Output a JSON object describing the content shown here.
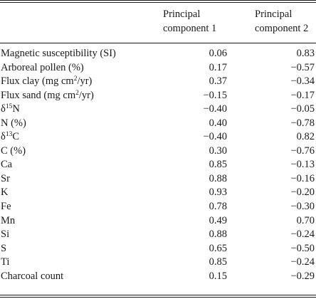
{
  "table": {
    "headers": {
      "pc1_line1": "Principal",
      "pc1_line2": "component 1",
      "pc2_line1": "Principal",
      "pc2_line2": "component 2"
    },
    "rows": [
      {
        "pre": "Magnetic susceptibility (SI)",
        "sup": "",
        "post": "",
        "pc1": "0.06",
        "pc2": "0.83"
      },
      {
        "pre": "Arboreal pollen (%)",
        "sup": "",
        "post": "",
        "pc1": "0.17",
        "pc2": "−0.57"
      },
      {
        "pre": "Flux clay (mg cm",
        "sup": "2",
        "post": "/yr)",
        "pc1": "0.37",
        "pc2": "−0.34"
      },
      {
        "pre": "Flux sand (mg cm",
        "sup": "2",
        "post": "/yr)",
        "pc1": "−0.15",
        "pc2": "−0.17"
      },
      {
        "pre": "δ",
        "sup": "15",
        "post": "N",
        "pc1": "−0.40",
        "pc2": "−0.05"
      },
      {
        "pre": "N (%)",
        "sup": "",
        "post": "",
        "pc1": "0.40",
        "pc2": "−0.78"
      },
      {
        "pre": "δ",
        "sup": "13",
        "post": "C",
        "pc1": "−0.40",
        "pc2": "0.82"
      },
      {
        "pre": "C (%)",
        "sup": "",
        "post": "",
        "pc1": "0.30",
        "pc2": "−0.76"
      },
      {
        "pre": "Ca",
        "sup": "",
        "post": "",
        "pc1": "0.85",
        "pc2": "−0.13"
      },
      {
        "pre": "Sr",
        "sup": "",
        "post": "",
        "pc1": "0.88",
        "pc2": "−0.16"
      },
      {
        "pre": "K",
        "sup": "",
        "post": "",
        "pc1": "0.93",
        "pc2": "−0.20"
      },
      {
        "pre": "Fe",
        "sup": "",
        "post": "",
        "pc1": "0.78",
        "pc2": "−0.30"
      },
      {
        "pre": "Mn",
        "sup": "",
        "post": "",
        "pc1": "0.49",
        "pc2": "0.70"
      },
      {
        "pre": "Si",
        "sup": "",
        "post": "",
        "pc1": "0.88",
        "pc2": "−0.24"
      },
      {
        "pre": "S",
        "sup": "",
        "post": "",
        "pc1": "0.65",
        "pc2": "−0.50"
      },
      {
        "pre": "Ti",
        "sup": "",
        "post": "",
        "pc1": "0.85",
        "pc2": "−0.24"
      },
      {
        "pre": "Charcoal count",
        "sup": "",
        "post": "",
        "pc1": "0.15",
        "pc2": "−0.29"
      }
    ]
  }
}
